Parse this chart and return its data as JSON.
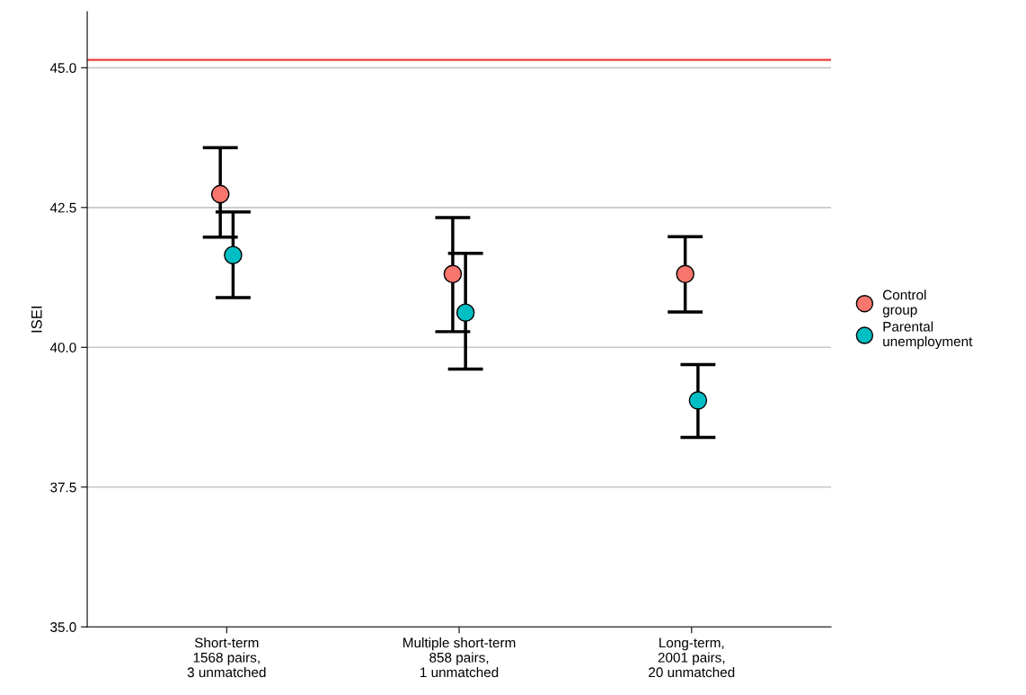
{
  "chart_data": {
    "type": "scatter",
    "ylabel": "ISEI",
    "categories": [
      "Short-term\n1568 pairs,\n3 unmatched",
      "Multiple short-term\n858 pairs,\n1 unmatched",
      "Long-term,\n2001 pairs,\n20 unmatched"
    ],
    "series": [
      {
        "name": "Control\ngroup",
        "color": "#f8766d",
        "values": [
          42.74,
          41.31,
          41.31
        ],
        "errors": [
          [
            41.97,
            43.57
          ],
          [
            40.28,
            42.32
          ],
          [
            40.63,
            41.98
          ]
        ]
      },
      {
        "name": "Parental\nunemployment",
        "color": "#00bfc4",
        "values": [
          41.65,
          40.62,
          39.05
        ],
        "errors": [
          [
            40.89,
            42.42
          ],
          [
            39.61,
            41.68
          ],
          [
            38.39,
            39.69
          ]
        ]
      }
    ],
    "ylim": [
      35,
      46
    ],
    "yticks": [
      {
        "value": 35,
        "label": "35.0"
      },
      {
        "value": 37.5,
        "label": "37.5"
      },
      {
        "value": 40,
        "label": "40.0"
      },
      {
        "value": 42.5,
        "label": "42.5"
      },
      {
        "value": 45,
        "label": "45.0"
      }
    ],
    "ref_lines": [
      {
        "axis": "y",
        "value": 45.14,
        "color": "#f03c3c"
      }
    ],
    "grid": "y",
    "legend": "right",
    "marker": "circle"
  }
}
